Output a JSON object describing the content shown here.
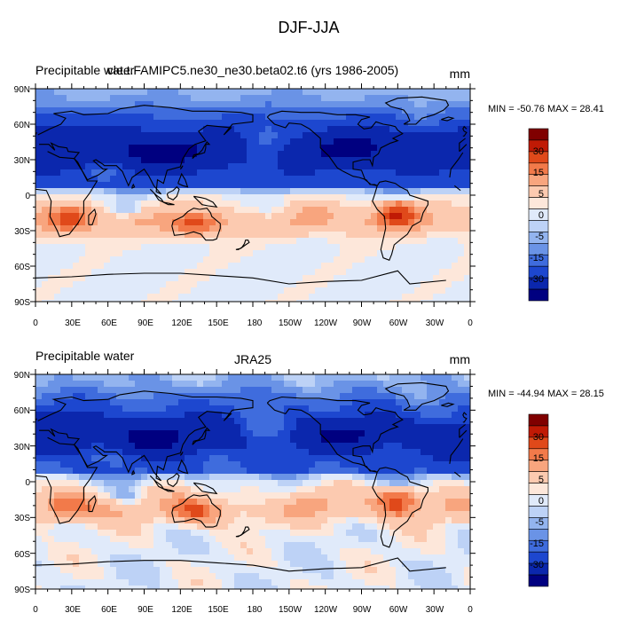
{
  "figure": {
    "main_title": "DJF-JJA"
  },
  "panels": [
    {
      "left_title": "Precipitable water",
      "center_title": "cle.t.FAMIPC5.ne30_ne30.beta02.t6 (yrs 1986-2005)",
      "units": "mm",
      "stats": "MIN = -50.76 MAX =  28.41",
      "variant": "model"
    },
    {
      "left_title": "Precipitable water",
      "center_title": "JRA25",
      "units": "mm",
      "stats": "MIN = -44.94 MAX =  28.15",
      "variant": "obs"
    }
  ],
  "axes": {
    "lat_ticks": [
      "90N",
      "60N",
      "30N",
      "0",
      "30S",
      "60S",
      "90S"
    ],
    "lon_ticks": [
      "0",
      "30E",
      "60E",
      "90E",
      "120E",
      "150E",
      "180",
      "150W",
      "120W",
      "90W",
      "60W",
      "30W",
      "0"
    ]
  },
  "colorbar": {
    "labels": [
      "30",
      "15",
      "5",
      "0",
      "-5",
      "-15",
      "-30"
    ],
    "colors": [
      "#800000",
      "#c01a05",
      "#e0491a",
      "#f27a4a",
      "#f8a57e",
      "#fccab0",
      "#fde7da",
      "#e0eafa",
      "#bdd2f6",
      "#93b4ef",
      "#6a93e6",
      "#3f6cdd",
      "#1d47cf",
      "#0b27ad",
      "#000080"
    ]
  }
}
